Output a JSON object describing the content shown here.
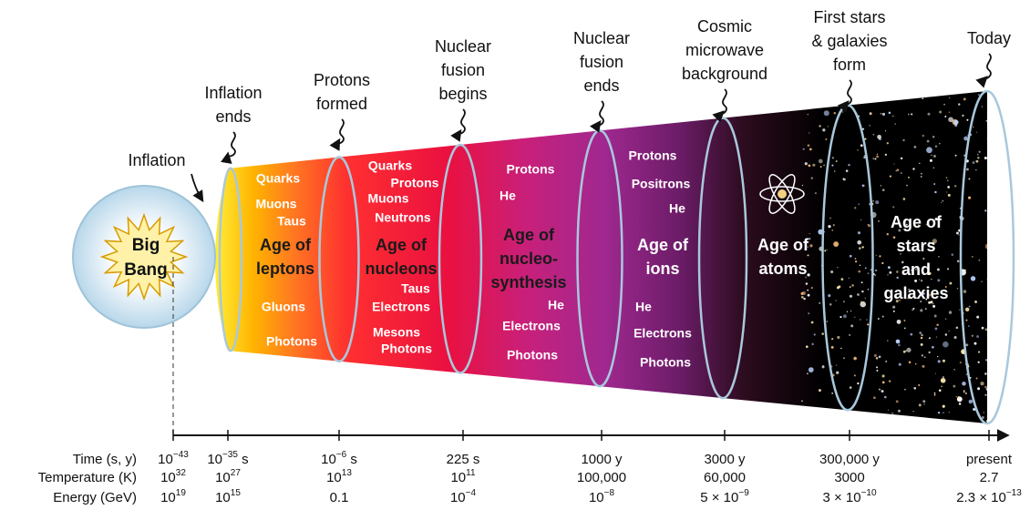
{
  "big_bang": [
    "Big",
    "Bang"
  ],
  "events": [
    [
      "Inflation"
    ],
    [
      "Inflation",
      "ends"
    ],
    [
      "Protons",
      "formed"
    ],
    [
      "Nuclear",
      "fusion",
      "begins"
    ],
    [
      "Nuclear",
      "fusion",
      "ends"
    ],
    [
      "Cosmic",
      "microwave",
      "background"
    ],
    [
      "First stars",
      "& galaxies",
      "form"
    ],
    [
      "Today"
    ]
  ],
  "ages": [
    {
      "title": [
        "Age of",
        "leptons"
      ],
      "particles": [
        "Quarks",
        "Muons",
        "Taus",
        "Gluons",
        "Photons"
      ]
    },
    {
      "title": [
        "Age of",
        "nucleons"
      ],
      "particles": [
        "Quarks",
        "Protons",
        "Muons",
        "Neutrons",
        "Taus",
        "Electrons",
        "Mesons",
        "Photons"
      ]
    },
    {
      "title": [
        "Age of",
        "nucleo-",
        "synthesis"
      ],
      "particles": [
        "Protons",
        "He",
        "He",
        "Electrons",
        "Photons"
      ]
    },
    {
      "title": [
        "Age of",
        "ions"
      ],
      "particles": [
        "Protons",
        "Positrons",
        "He",
        "He",
        "Electrons",
        "Photons"
      ]
    },
    {
      "title": [
        "Age of",
        "atoms"
      ],
      "particles": []
    },
    {
      "title": [
        "Age of",
        "stars",
        "and",
        "galaxies"
      ],
      "particles": []
    }
  ],
  "timeline": {
    "row_labels": [
      "Time (s, y)",
      "Temperature (K)",
      "Energy (GeV)"
    ],
    "rows": [
      [
        {
          "base": "10",
          "sup": "−43"
        },
        {
          "base": "10",
          "sup": "−35",
          "suffix": " s"
        },
        {
          "base": "10",
          "sup": "−6",
          "suffix": " s"
        },
        "225 s",
        "1000 y",
        "3000 y",
        "300,000 y",
        "present"
      ],
      [
        {
          "base": "10",
          "sup": "32"
        },
        {
          "base": "10",
          "sup": "27"
        },
        {
          "base": "10",
          "sup": "13"
        },
        {
          "base": "10",
          "sup": "11"
        },
        "100,000",
        "60,000",
        "3000",
        "2.7"
      ],
      [
        {
          "base": "10",
          "sup": "19"
        },
        {
          "base": "10",
          "sup": "15"
        },
        "0.1",
        {
          "base": "10",
          "sup": "−4"
        },
        {
          "base": "10",
          "sup": "−8"
        },
        {
          "base": "5 × 10",
          "sup": "−9"
        },
        {
          "base": "3 × 10",
          "sup": "−10"
        },
        {
          "base": "2.3 × 10",
          "sup": "−13"
        }
      ]
    ]
  }
}
